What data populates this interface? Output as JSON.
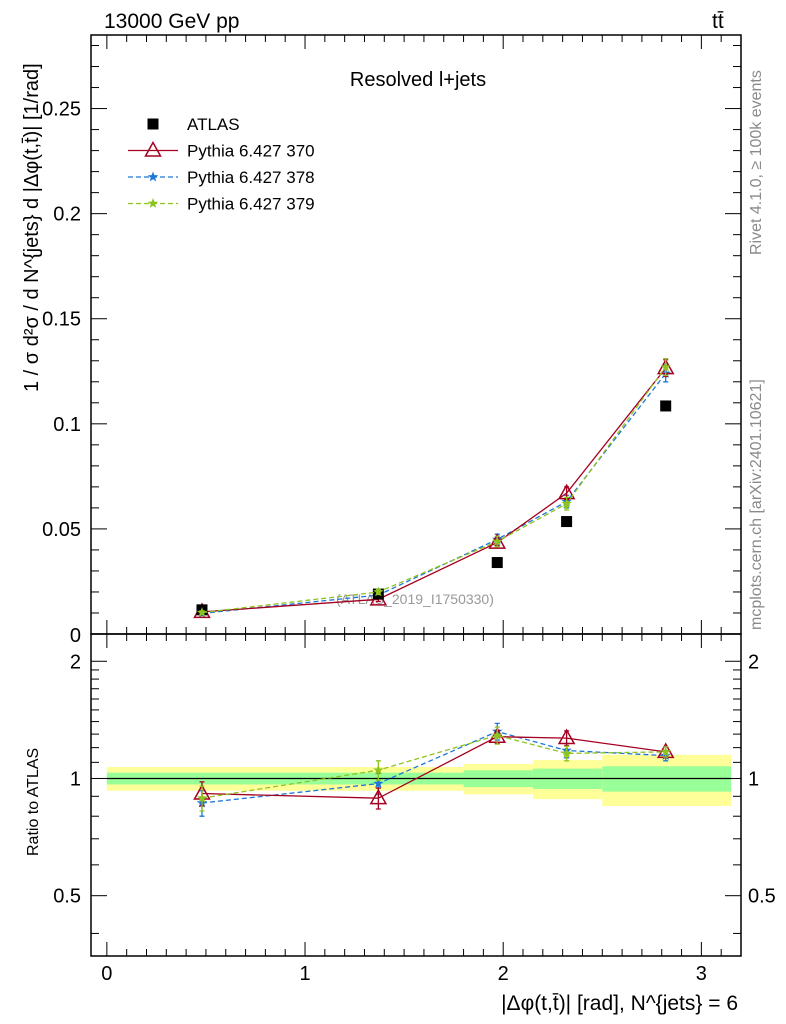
{
  "header": {
    "energy_label": "13000 GeV pp",
    "process_label": "tt̄"
  },
  "side_labels": {
    "rivet": "Rivet 4.1.0, ≥ 100k events",
    "mcplots": "mcplots.cern.ch [arXiv:2401.10621]"
  },
  "chart_data": [
    {
      "type": "scatter",
      "panel": "main",
      "title": "Resolved l+jets",
      "watermark": "(ATLAS_2019_I1750330)",
      "ylabel": "1 / σ d²σ / d N^{jets} d |Δφ(t,t̄)| [1/rad]",
      "xlim": [
        -0.08,
        3.2
      ],
      "ylim": [
        0,
        0.285
      ],
      "yticks": [
        0.05,
        0.1,
        0.15,
        0.2,
        0.25
      ],
      "ytick_labels": [
        "0.05",
        "0.1",
        "0.15",
        "0.2",
        "0.25"
      ],
      "bottom_tick_label": "0",
      "x": [
        0.48,
        1.37,
        1.97,
        2.32,
        2.82
      ],
      "series": [
        {
          "name": "ATLAS",
          "color": "#000000",
          "marker": "square",
          "values": [
            0.0115,
            0.019,
            0.034,
            0.0535,
            0.1085
          ]
        },
        {
          "name": "Pythia 6.427 370",
          "color": "#a50021",
          "marker": "triangle",
          "values": [
            0.0105,
            0.0165,
            0.0435,
            0.067,
            0.1265
          ],
          "errors": [
            0.0008,
            0.001,
            0.0015,
            0.003,
            0.004
          ]
        },
        {
          "name": "Pythia 6.427 378",
          "color": "#1f77d8",
          "marker": "star",
          "values": [
            0.0098,
            0.0185,
            0.045,
            0.063,
            0.124
          ],
          "errors": [
            0.0008,
            0.0012,
            0.0025,
            0.003,
            0.004
          ]
        },
        {
          "name": "Pythia 6.427 379",
          "color": "#8fc31f",
          "marker": "star",
          "values": [
            0.0102,
            0.02,
            0.044,
            0.062,
            0.127
          ],
          "errors": [
            0.0008,
            0.0012,
            0.0025,
            0.003,
            0.004
          ]
        }
      ]
    },
    {
      "type": "scatter",
      "panel": "ratio",
      "ylabel": "Ratio to ATLAS",
      "xlabel": "|Δφ(t,t̄)| [rad], N^{jets} = 6",
      "ylim": [
        0.35,
        2.35
      ],
      "yscale": "log",
      "yticks": [
        0.5,
        1,
        2
      ],
      "ytick_labels": [
        "0.5",
        "1",
        "2"
      ],
      "xticks": [
        0,
        1,
        2,
        3
      ],
      "xtick_labels": [
        "0",
        "1",
        "2",
        "3"
      ],
      "bands": [
        {
          "x": [
            0,
            1.8
          ],
          "inner": [
            0.965,
            1.035
          ],
          "outer": [
            0.93,
            1.07
          ]
        },
        {
          "x": [
            1.8,
            2.15
          ],
          "inner": [
            0.95,
            1.05
          ],
          "outer": [
            0.91,
            1.09
          ]
        },
        {
          "x": [
            2.15,
            2.5
          ],
          "inner": [
            0.94,
            1.06
          ],
          "outer": [
            0.885,
            1.115
          ]
        },
        {
          "x": [
            2.5,
            3.15
          ],
          "inner": [
            0.925,
            1.075
          ],
          "outer": [
            0.85,
            1.15
          ]
        }
      ],
      "x": [
        0.48,
        1.37,
        1.97,
        2.32,
        2.82
      ],
      "series": [
        {
          "name": "Pythia 6.427 370",
          "color": "#a50021",
          "marker": "triangle",
          "values": [
            0.915,
            0.89,
            1.28,
            1.27,
            1.17
          ],
          "errors": [
            0.065,
            0.055,
            0.05,
            0.055,
            0.035
          ]
        },
        {
          "name": "Pythia 6.427 378",
          "color": "#1f77d8",
          "marker": "star",
          "values": [
            0.865,
            0.97,
            1.32,
            1.18,
            1.145
          ],
          "errors": [
            0.065,
            0.06,
            0.065,
            0.05,
            0.035
          ]
        },
        {
          "name": "Pythia 6.427 379",
          "color": "#8fc31f",
          "marker": "star",
          "values": [
            0.89,
            1.05,
            1.29,
            1.16,
            1.17
          ],
          "errors": [
            0.065,
            0.06,
            0.065,
            0.05,
            0.035
          ]
        }
      ]
    }
  ]
}
